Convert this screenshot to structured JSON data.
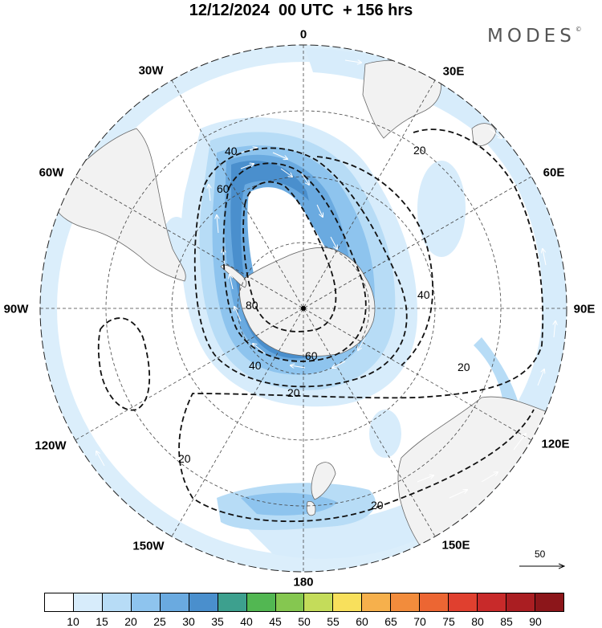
{
  "header": {
    "title": "12/12/2024  00 UTC  + 156 hrs",
    "brand": "MODES",
    "brand_mark": "©"
  },
  "map": {
    "projection": "south-polar-stereographic",
    "longitude_labels": [
      {
        "id": "0",
        "text": "0",
        "angle": 0
      },
      {
        "id": "30e",
        "text": "30E",
        "angle": 30
      },
      {
        "id": "60e",
        "text": "60E",
        "angle": 60
      },
      {
        "id": "90e",
        "text": "90E",
        "angle": 90
      },
      {
        "id": "120e",
        "text": "120E",
        "angle": 120
      },
      {
        "id": "150e",
        "text": "150E",
        "angle": 150
      },
      {
        "id": "180",
        "text": "180",
        "angle": 180
      },
      {
        "id": "150w",
        "text": "150W",
        "angle": 210
      },
      {
        "id": "120w",
        "text": "120W",
        "angle": 240
      },
      {
        "id": "90w",
        "text": "90W",
        "angle": 270
      },
      {
        "id": "60w",
        "text": "60W",
        "angle": 300
      },
      {
        "id": "30w",
        "text": "30W",
        "angle": 330
      }
    ],
    "contour_labels": [
      {
        "id": "40a",
        "text": "40"
      },
      {
        "id": "60a",
        "text": "60"
      },
      {
        "id": "80a",
        "text": "80"
      },
      {
        "id": "60b",
        "text": "60"
      },
      {
        "id": "40b",
        "text": "40"
      },
      {
        "id": "20a",
        "text": "20"
      },
      {
        "id": "20b",
        "text": "20"
      },
      {
        "id": "40c",
        "text": "40"
      },
      {
        "id": "20c",
        "text": "20"
      },
      {
        "id": "20d",
        "text": "20"
      },
      {
        "id": "20e",
        "text": "20"
      }
    ],
    "vector_key": "50",
    "colors": {
      "land": "#f2f2f2",
      "coast": "#666666",
      "contour": "#111111",
      "grid": "#444444",
      "shade_15": "#d7ecfb",
      "shade_20": "#b7dcf6",
      "shade_25": "#8ec4ee",
      "shade_30": "#6aaae0",
      "shade_35": "#4a8fcd"
    }
  },
  "colorbar": {
    "ticks": [
      "10",
      "15",
      "20",
      "25",
      "30",
      "35",
      "40",
      "45",
      "50",
      "55",
      "60",
      "65",
      "70",
      "75",
      "80",
      "85",
      "90"
    ],
    "colors": [
      "#ffffff",
      "#d7ecfb",
      "#b7dcf6",
      "#8ec4ee",
      "#6aaae0",
      "#4a8fcd",
      "#3da08e",
      "#52b752",
      "#85c750",
      "#c4dc5a",
      "#f8e05c",
      "#f6b04c",
      "#f28c3c",
      "#ec6633",
      "#e0402f",
      "#c82a2a",
      "#aa1e22",
      "#8c161a"
    ]
  }
}
